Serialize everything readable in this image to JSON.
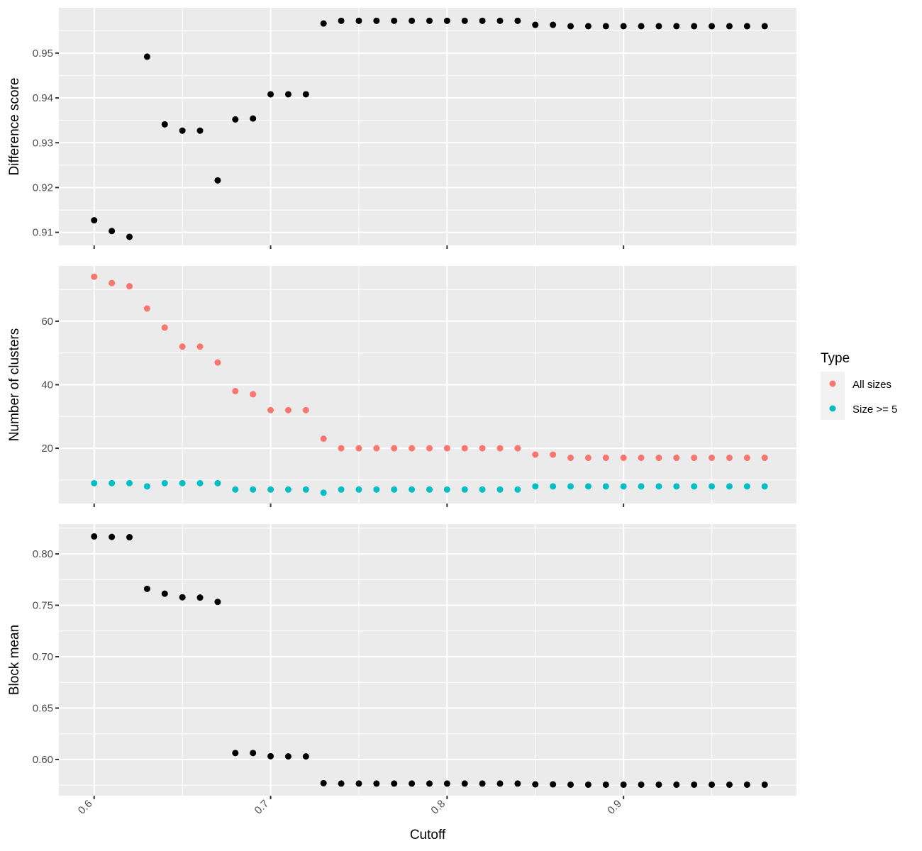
{
  "chart_data": {
    "type": "scatter",
    "x_label": "Cutoff",
    "x_range": [
      0.58,
      0.998
    ],
    "x_ticks": [
      "0.6",
      "0.7",
      "0.8",
      "0.9"
    ],
    "x_tick_values": [
      0.6,
      0.7,
      0.8,
      0.9
    ],
    "x": [
      0.6,
      0.61,
      0.62,
      0.63,
      0.64,
      0.65,
      0.66,
      0.67,
      0.68,
      0.69,
      0.7,
      0.71,
      0.72,
      0.73,
      0.74,
      0.75,
      0.76,
      0.77,
      0.78,
      0.79,
      0.8,
      0.81,
      0.82,
      0.83,
      0.84,
      0.85,
      0.86,
      0.87,
      0.88,
      0.89,
      0.9,
      0.91,
      0.92,
      0.93,
      0.94,
      0.95,
      0.96,
      0.97,
      0.98
    ],
    "panels": [
      {
        "ylabel": "Difference score",
        "ylim": [
          0.9071,
          0.9601
        ],
        "y_ticks": [
          "0.91",
          "0.92",
          "0.93",
          "0.94",
          "0.95"
        ],
        "y_tick_values": [
          0.91,
          0.92,
          0.93,
          0.94,
          0.95
        ],
        "series": [
          {
            "name": "Difference score",
            "color": "#000000",
            "values": [
              0.9127,
              0.9103,
              0.909,
              0.9492,
              0.9341,
              0.9327,
              0.9327,
              0.9216,
              0.9352,
              0.9354,
              0.9408,
              0.9408,
              0.9408,
              0.9566,
              0.9572,
              0.9572,
              0.9572,
              0.9572,
              0.9572,
              0.9572,
              0.9572,
              0.9572,
              0.9572,
              0.9572,
              0.9572,
              0.9563,
              0.9563,
              0.956,
              0.956,
              0.956,
              0.956,
              0.956,
              0.956,
              0.956,
              0.956,
              0.956,
              0.956,
              0.956,
              0.956
            ]
          }
        ]
      },
      {
        "ylabel": "Number of clusters",
        "ylim": [
          2.6,
          77.4
        ],
        "y_ticks": [
          "20",
          "40",
          "60"
        ],
        "y_tick_values": [
          20,
          40,
          60
        ],
        "series": [
          {
            "name": "All sizes",
            "color": "#F8766D",
            "values": [
              74,
              72,
              71,
              64,
              58,
              52,
              52,
              47,
              38,
              37,
              32,
              32,
              32,
              23,
              20,
              20,
              20,
              20,
              20,
              20,
              20,
              20,
              20,
              20,
              20,
              18,
              18,
              17,
              17,
              17,
              17,
              17,
              17,
              17,
              17,
              17,
              17,
              17,
              17
            ]
          },
          {
            "name": "Size >= 5",
            "color": "#00BFC4",
            "values": [
              9,
              9,
              9,
              8,
              9,
              9,
              9,
              9,
              7,
              7,
              7,
              7,
              7,
              6,
              7,
              7,
              7,
              7,
              7,
              7,
              7,
              7,
              7,
              7,
              7,
              8,
              8,
              8,
              8,
              8,
              8,
              8,
              8,
              8,
              8,
              8,
              8,
              8,
              8
            ]
          }
        ]
      },
      {
        "ylabel": "Block mean",
        "ylim": [
          0.5648,
          0.829
        ],
        "y_ticks": [
          "0.60",
          "0.65",
          "0.70",
          "0.75",
          "0.80"
        ],
        "y_tick_values": [
          0.6,
          0.65,
          0.7,
          0.75,
          0.8
        ],
        "series": [
          {
            "name": "Block mean",
            "color": "#000000",
            "values": [
              0.817,
              0.8165,
              0.8162,
              0.766,
              0.7613,
              0.7578,
              0.7575,
              0.7533,
              0.6063,
              0.6063,
              0.6032,
              0.603,
              0.603,
              0.577,
              0.5766,
              0.5766,
              0.5766,
              0.5766,
              0.5766,
              0.5766,
              0.5766,
              0.5766,
              0.5766,
              0.5766,
              0.5766,
              0.5758,
              0.5758,
              0.5755,
              0.5755,
              0.5755,
              0.5755,
              0.5755,
              0.5755,
              0.5755,
              0.5755,
              0.5755,
              0.5755,
              0.5755,
              0.5755
            ]
          }
        ]
      }
    ],
    "legend": {
      "title": "Type",
      "position": "right",
      "entries": [
        {
          "label": "All sizes",
          "color": "#F8766D"
        },
        {
          "label": "Size >= 5",
          "color": "#00BFC4"
        }
      ]
    }
  }
}
